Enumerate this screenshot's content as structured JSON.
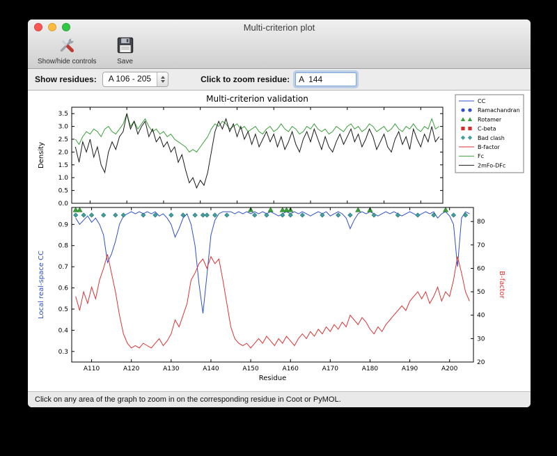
{
  "window": {
    "title": "Multi-criterion plot",
    "toolbar": {
      "show_hide_label": "Show/hide controls",
      "show_hide_icon": "tools-icon",
      "save_label": "Save",
      "save_icon": "floppy-disk-icon"
    },
    "controls": {
      "show_residues_label": "Show residues:",
      "residue_range_value": "A 106 - 205",
      "zoom_residue_label": "Click to zoom residue:",
      "zoom_residue_value": "A  144"
    },
    "status_text": "Click on any area of the graph to zoom in on the corresponding residue in Coot or PyMOL."
  },
  "chart_data": {
    "type": "line",
    "title": "Multi-criterion validation",
    "xlabel": "Residue",
    "x_range": [
      106,
      205
    ],
    "xticks": [
      110,
      120,
      130,
      140,
      150,
      160,
      170,
      180,
      190,
      200
    ],
    "xtick_labels": [
      "A110",
      "A120",
      "A130",
      "A140",
      "A150",
      "A160",
      "A170",
      "A180",
      "A190",
      "A200"
    ],
    "legend": [
      {
        "label": "CC",
        "type": "line",
        "color": "#3050c8"
      },
      {
        "label": "Ramachandran",
        "type": "circle",
        "color": "#3050c8"
      },
      {
        "label": "Rotamer",
        "type": "triangle",
        "color": "#3aa03a"
      },
      {
        "label": "C-beta",
        "type": "square",
        "color": "#d62b2b"
      },
      {
        "label": "Bad clash",
        "type": "diamond",
        "color": "#40a0a0"
      },
      {
        "label": "B-factor",
        "type": "line",
        "color": "#dd3333"
      },
      {
        "label": "Fc",
        "type": "line",
        "color": "#3aa03a"
      },
      {
        "label": "2mFo-DFc",
        "type": "line",
        "color": "#1a1a1a"
      }
    ],
    "top_plot": {
      "ylabel": "Density",
      "ylim": [
        0,
        3.75
      ],
      "yticks": [
        0.0,
        0.5,
        1.0,
        1.5,
        2.0,
        2.5,
        3.0,
        3.5
      ],
      "series": [
        {
          "name": "Fc",
          "color": "#3aa03a",
          "values": [
            2.5,
            2.3,
            2.6,
            2.8,
            2.7,
            2.9,
            2.8,
            2.6,
            2.9,
            3.0,
            2.8,
            2.7,
            2.9,
            3.1,
            3.5,
            3.0,
            3.2,
            2.9,
            3.1,
            3.3,
            3.0,
            2.8,
            2.9,
            2.7,
            2.8,
            2.6,
            2.7,
            2.5,
            2.4,
            2.3,
            2.2,
            2.0,
            2.1,
            2.0,
            2.2,
            2.4,
            2.6,
            2.9,
            3.1,
            3.0,
            3.2,
            3.1,
            2.9,
            3.0,
            3.1,
            2.9,
            3.0,
            2.8,
            2.9,
            3.0,
            2.8,
            2.7,
            2.9,
            3.0,
            2.8,
            2.9,
            3.1,
            2.9,
            2.8,
            3.0,
            2.9,
            2.7,
            2.8,
            3.0,
            2.9,
            3.1,
            2.9,
            2.8,
            2.9,
            2.7,
            2.8,
            3.0,
            2.9,
            2.8,
            3.0,
            3.1,
            2.9,
            3.0,
            2.8,
            2.9,
            3.1,
            3.0,
            2.8,
            2.9,
            3.0,
            2.8,
            2.9,
            3.1,
            2.9,
            2.8,
            3.0,
            2.9,
            3.1,
            2.9,
            2.8,
            3.0,
            2.9,
            3.3,
            2.9,
            3.0
          ]
        },
        {
          "name": "2mFo-DFc",
          "color": "#1a1a1a",
          "values": [
            2.2,
            1.6,
            2.4,
            2.0,
            2.5,
            1.8,
            2.2,
            1.5,
            1.2,
            2.0,
            2.4,
            2.1,
            2.6,
            2.8,
            3.5,
            2.9,
            3.2,
            2.7,
            3.0,
            3.2,
            2.6,
            2.9,
            2.4,
            2.6,
            2.2,
            2.4,
            2.0,
            2.2,
            1.6,
            1.9,
            1.3,
            0.8,
            1.0,
            0.6,
            0.9,
            0.7,
            1.2,
            2.0,
            2.8,
            3.2,
            2.9,
            3.3,
            2.8,
            3.1,
            2.6,
            3.0,
            2.5,
            2.8,
            2.3,
            2.7,
            2.2,
            2.5,
            2.8,
            2.4,
            2.7,
            2.2,
            2.6,
            2.1,
            2.4,
            2.8,
            2.3,
            2.0,
            2.5,
            2.8,
            2.4,
            2.9,
            2.5,
            2.1,
            2.6,
            2.2,
            2.0,
            2.4,
            2.7,
            2.3,
            2.6,
            2.9,
            2.4,
            2.7,
            2.2,
            2.5,
            2.9,
            2.6,
            2.1,
            2.4,
            2.7,
            2.2,
            2.0,
            2.5,
            2.8,
            2.3,
            2.6,
            2.1,
            2.9,
            2.5,
            2.2,
            2.7,
            2.4,
            3.0,
            2.4,
            2.6
          ]
        }
      ]
    },
    "bottom_plot": {
      "ylabel_left": "Local real-space CC",
      "ylabel_left_color": "#3050c8",
      "ylim_left": [
        0.25,
        0.98
      ],
      "yticks_left": [
        0.3,
        0.4,
        0.5,
        0.6,
        0.7,
        0.8,
        0.9
      ],
      "ylabel_right": "B-factor",
      "ylabel_right_color": "#dd3333",
      "ylim_right": [
        20,
        86
      ],
      "yticks_right": [
        20,
        30,
        40,
        50,
        60,
        70,
        80
      ],
      "series": [
        {
          "name": "CC",
          "axis": "left",
          "color": "#3050c8",
          "values": [
            0.93,
            0.9,
            0.92,
            0.94,
            0.91,
            0.93,
            0.9,
            0.85,
            0.72,
            0.76,
            0.82,
            0.9,
            0.94,
            0.95,
            0.96,
            0.95,
            0.96,
            0.95,
            0.96,
            0.95,
            0.96,
            0.94,
            0.95,
            0.93,
            0.9,
            0.84,
            0.88,
            0.93,
            0.95,
            0.9,
            0.8,
            0.62,
            0.48,
            0.66,
            0.85,
            0.92,
            0.95,
            0.96,
            0.96,
            0.96,
            0.95,
            0.96,
            0.95,
            0.96,
            0.95,
            0.96,
            0.95,
            0.96,
            0.95,
            0.96,
            0.95,
            0.94,
            0.95,
            0.96,
            0.95,
            0.96,
            0.95,
            0.96,
            0.95,
            0.94,
            0.95,
            0.96,
            0.95,
            0.96,
            0.94,
            0.95,
            0.96,
            0.95,
            0.93,
            0.88,
            0.92,
            0.95,
            0.96,
            0.95,
            0.96,
            0.95,
            0.94,
            0.95,
            0.96,
            0.95,
            0.96,
            0.95,
            0.94,
            0.95,
            0.96,
            0.95,
            0.94,
            0.95,
            0.96,
            0.95,
            0.96,
            0.93,
            0.95,
            0.96,
            0.94,
            0.9,
            0.7,
            0.93,
            0.96,
            0.95
          ]
        },
        {
          "name": "B-factor",
          "axis": "right",
          "color": "#dd3333",
          "values": [
            48,
            42,
            50,
            45,
            52,
            47,
            55,
            60,
            66,
            58,
            50,
            40,
            32,
            28,
            26,
            27,
            26,
            28,
            27,
            26,
            28,
            30,
            27,
            29,
            32,
            38,
            35,
            40,
            45,
            55,
            58,
            62,
            64,
            60,
            65,
            62,
            64,
            55,
            45,
            35,
            30,
            28,
            27,
            28,
            26,
            28,
            30,
            28,
            31,
            29,
            27,
            30,
            28,
            31,
            29,
            27,
            30,
            32,
            30,
            33,
            31,
            34,
            32,
            35,
            33,
            36,
            34,
            37,
            35,
            40,
            38,
            36,
            39,
            37,
            34,
            32,
            35,
            33,
            36,
            38,
            40,
            42,
            44,
            42,
            46,
            48,
            50,
            47,
            50,
            45,
            48,
            52,
            46,
            50,
            48,
            55,
            65,
            58,
            50,
            46
          ]
        }
      ],
      "markers": {
        "bad_clash_residues": [
          106,
          108,
          110,
          113,
          116,
          118,
          123,
          126,
          130,
          133,
          136,
          138,
          139,
          141,
          144,
          151,
          154,
          158,
          160,
          163,
          168,
          172,
          175,
          181,
          187,
          192,
          196,
          201,
          204
        ],
        "rotamer_outlier_residues": [
          106,
          107,
          150,
          155,
          158,
          159,
          160,
          177,
          180,
          199
        ]
      }
    }
  }
}
